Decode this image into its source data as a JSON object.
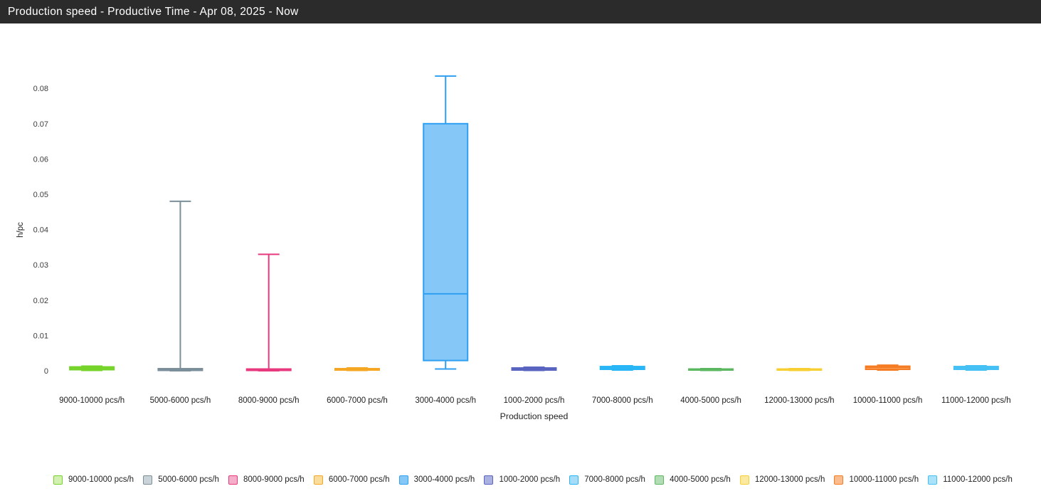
{
  "header": {
    "title": "Production speed - Productive Time - Apr 08, 2025 - Now"
  },
  "chart_data": {
    "type": "boxplot",
    "title": "Production speed - Productive Time - Apr 08, 2025 - Now",
    "xlabel": "Production speed",
    "ylabel": "h/pc",
    "ylim": [
      0,
      0.0865
    ],
    "yticks": [
      0,
      0.01,
      0.02,
      0.03,
      0.04,
      0.05,
      0.06,
      0.07,
      0.08
    ],
    "ytick_labels": [
      "0",
      "0.01",
      "0.02",
      "0.03",
      "0.04",
      "0.05",
      "0.06",
      "0.07",
      "0.08"
    ],
    "grid": false,
    "legend_position": "bottom",
    "series": [
      {
        "name": "9000-10000 pcs/h",
        "color": "#76d32a",
        "fill": "#d2f0b0",
        "low": 0.0001,
        "q1": 0.0003,
        "median": 0.0007,
        "q3": 0.0011,
        "high": 0.0013
      },
      {
        "name": "5000-6000 pcs/h",
        "color": "#7b8f9a",
        "fill": "#c9d3d8",
        "low": 0.0,
        "q1": 0.0001,
        "median": 0.0003,
        "q3": 0.0006,
        "high": 0.048
      },
      {
        "name": "8000-9000 pcs/h",
        "color": "#e8387e",
        "fill": "#f5aeca",
        "low": 0.0,
        "q1": 0.0001,
        "median": 0.0003,
        "q3": 0.0005,
        "high": 0.033
      },
      {
        "name": "6000-7000 pcs/h",
        "color": "#f5a623",
        "fill": "#fcdc9a",
        "low": 0.0001,
        "q1": 0.0002,
        "median": 0.0004,
        "q3": 0.0006,
        "high": 0.0008
      },
      {
        "name": "3000-4000 pcs/h",
        "color": "#2f9ff2",
        "fill": "#85c8f7",
        "low": 0.0005,
        "q1": 0.0029,
        "median": 0.0218,
        "q3": 0.07,
        "high": 0.0835
      },
      {
        "name": "1000-2000 pcs/h",
        "color": "#5864c0",
        "fill": "#aab1e0",
        "low": 0.0001,
        "q1": 0.0002,
        "median": 0.0005,
        "q3": 0.0008,
        "high": 0.001
      },
      {
        "name": "7000-8000 pcs/h",
        "color": "#29b6f6",
        "fill": "#a5ddf9",
        "low": 0.0002,
        "q1": 0.0004,
        "median": 0.0008,
        "q3": 0.0012,
        "high": 0.0014
      },
      {
        "name": "4000-5000 pcs/h",
        "color": "#5cb860",
        "fill": "#b2dcb4",
        "low": 0.0001,
        "q1": 0.0002,
        "median": 0.0004,
        "q3": 0.0005,
        "high": 0.0006
      },
      {
        "name": "12000-13000 pcs/h",
        "color": "#f7cf33",
        "fill": "#fbe99f",
        "low": 0.0001,
        "q1": 0.0002,
        "median": 0.0004,
        "q3": 0.0005,
        "high": 0.0006
      },
      {
        "name": "10000-11000 pcs/h",
        "color": "#f57c23",
        "fill": "#fabc8c",
        "low": 0.0002,
        "q1": 0.0004,
        "median": 0.0009,
        "q3": 0.0013,
        "high": 0.0016
      },
      {
        "name": "11000-12000 pcs/h",
        "color": "#45c0f5",
        "fill": "#aae2fa",
        "low": 0.0002,
        "q1": 0.0004,
        "median": 0.0008,
        "q3": 0.0012,
        "high": 0.0014
      }
    ]
  }
}
